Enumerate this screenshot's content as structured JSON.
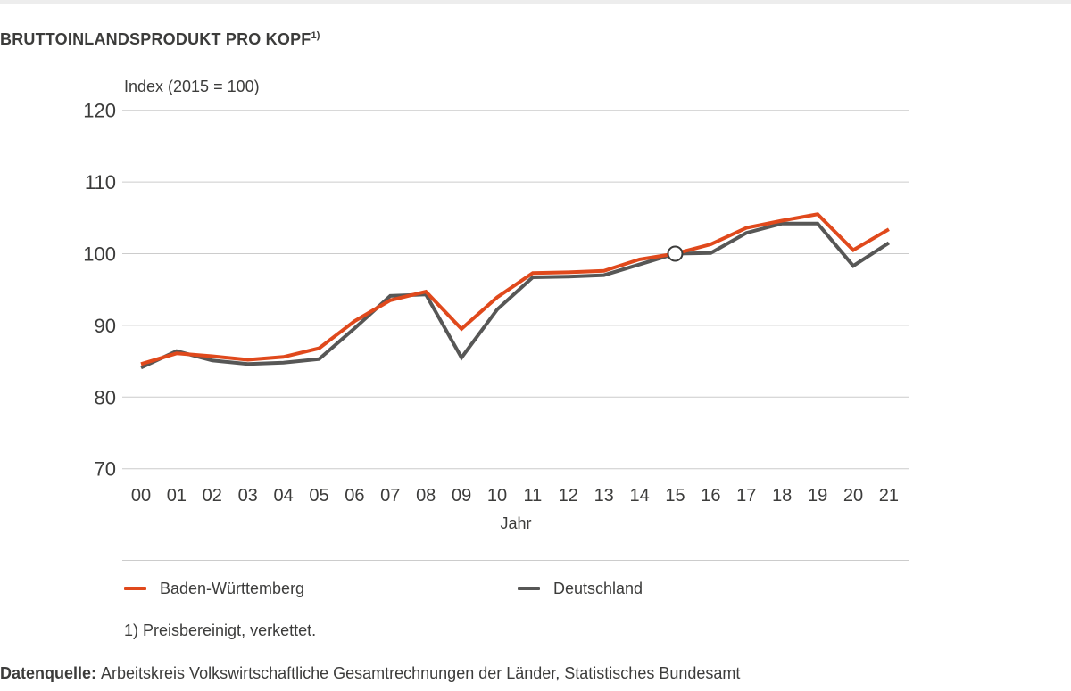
{
  "page": {
    "title": "BRUTTOINLANDSPRODUKT PRO KOPF",
    "title_sup": "1)",
    "footnote": "1) Preisbereinigt, verkettet.",
    "source_label": "Datenquelle:",
    "source_text": "Arbeitskreis Volkswirtschaftliche Gesamtrechnungen der Länder, Statistisches Bundesamt"
  },
  "colors": {
    "baden_wuerttemberg": "#e0491c",
    "deutschland": "#575756",
    "gridline": "#cccccc",
    "text": "#3c3c3b",
    "top_bar": "#ededed",
    "marker_fill": "#ffffff",
    "marker_stroke": "#3c3c3b"
  },
  "chart_data": {
    "type": "line",
    "title": "BRUTTOINLANDSPRODUKT PRO KOPF 1)",
    "subtitle": "Index (2015 = 100)",
    "xlabel": "Jahr",
    "ylabel": "Index (2015 = 100)",
    "ylim": [
      70,
      120
    ],
    "yticks": [
      70,
      80,
      90,
      100,
      110,
      120
    ],
    "grid": "horizontal-only",
    "legend_position": "bottom",
    "categories": [
      "00",
      "01",
      "02",
      "03",
      "04",
      "05",
      "06",
      "07",
      "08",
      "09",
      "10",
      "11",
      "12",
      "13",
      "14",
      "15",
      "16",
      "17",
      "18",
      "19",
      "20",
      "21"
    ],
    "series": [
      {
        "name": "Deutschland",
        "color": "#575756",
        "values": [
          84.1,
          86.4,
          85.1,
          84.6,
          84.8,
          85.3,
          89.6,
          94.1,
          94.3,
          85.5,
          92.2,
          96.7,
          96.8,
          97.0,
          98.5,
          100.0,
          100.1,
          102.9,
          104.2,
          104.2,
          98.3,
          101.5
        ]
      },
      {
        "name": "Baden-Württemberg",
        "color": "#e0491c",
        "values": [
          84.6,
          86.1,
          85.7,
          85.2,
          85.6,
          86.8,
          90.6,
          93.5,
          94.7,
          89.5,
          93.9,
          97.3,
          97.4,
          97.6,
          99.2,
          100.0,
          101.3,
          103.6,
          104.6,
          105.5,
          100.5,
          103.4
        ]
      }
    ],
    "legend_order": [
      "Baden-Württemberg",
      "Deutschland"
    ],
    "annotations": [
      {
        "type": "base-year-marker",
        "category": "15",
        "value": 100,
        "style": "white circle with dark outline"
      }
    ]
  }
}
